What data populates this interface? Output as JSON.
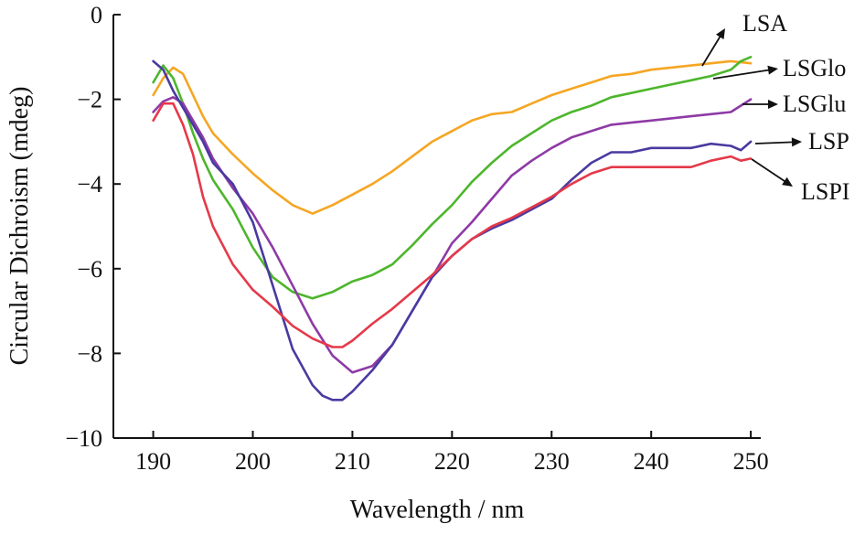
{
  "chart_data": {
    "type": "line",
    "title": "",
    "xlabel": "Wavelength / nm",
    "ylabel": "Circular Dichroism (mdeg)",
    "xlim": [
      186,
      251
    ],
    "ylim": [
      -10,
      0
    ],
    "xticks": [
      190,
      200,
      210,
      220,
      230,
      240,
      250
    ],
    "yticks": [
      0,
      -2,
      -4,
      -6,
      -8,
      -10
    ],
    "xtick_labels": [
      "190",
      "200",
      "210",
      "220",
      "230",
      "240",
      "250"
    ],
    "ytick_labels": [
      "0",
      "−2",
      "−4",
      "−6",
      "−8",
      "−10"
    ],
    "grid": false,
    "legend": "direct labels with arrows at right",
    "series": [
      {
        "name": "LSA",
        "color": "#f5a623",
        "x": [
          190,
          191,
          192,
          193,
          194,
          195,
          196,
          198,
          200,
          202,
          204,
          206,
          208,
          210,
          212,
          214,
          216,
          218,
          220,
          222,
          224,
          226,
          228,
          230,
          232,
          234,
          236,
          238,
          240,
          242,
          244,
          246,
          248,
          250
        ],
        "y": [
          -1.9,
          -1.5,
          -1.25,
          -1.4,
          -1.9,
          -2.4,
          -2.8,
          -3.3,
          -3.75,
          -4.15,
          -4.5,
          -4.7,
          -4.5,
          -4.25,
          -4.0,
          -3.7,
          -3.35,
          -3.0,
          -2.75,
          -2.5,
          -2.35,
          -2.3,
          -2.1,
          -1.9,
          -1.75,
          -1.6,
          -1.45,
          -1.4,
          -1.3,
          -1.25,
          -1.2,
          -1.15,
          -1.1,
          -1.15
        ]
      },
      {
        "name": "LSGlo",
        "color": "#4db62c",
        "x": [
          190,
          191,
          192,
          193,
          194,
          195,
          196,
          198,
          200,
          202,
          204,
          206,
          208,
          210,
          212,
          214,
          216,
          218,
          220,
          222,
          224,
          226,
          228,
          230,
          232,
          234,
          236,
          238,
          240,
          242,
          244,
          246,
          248,
          249,
          250
        ],
        "y": [
          -1.6,
          -1.2,
          -1.5,
          -2.1,
          -2.8,
          -3.4,
          -3.9,
          -4.6,
          -5.5,
          -6.2,
          -6.55,
          -6.7,
          -6.55,
          -6.3,
          -6.15,
          -5.9,
          -5.45,
          -4.95,
          -4.5,
          -3.95,
          -3.5,
          -3.1,
          -2.8,
          -2.5,
          -2.3,
          -2.15,
          -1.95,
          -1.85,
          -1.75,
          -1.65,
          -1.55,
          -1.45,
          -1.3,
          -1.1,
          -1.0
        ]
      },
      {
        "name": "LSGlu",
        "color": "#8e3aa6",
        "x": [
          190,
          191,
          192,
          193,
          194,
          195,
          196,
          198,
          200,
          202,
          204,
          206,
          208,
          210,
          212,
          214,
          216,
          218,
          220,
          222,
          224,
          226,
          228,
          230,
          232,
          234,
          236,
          238,
          240,
          242,
          244,
          246,
          248,
          250
        ],
        "y": [
          -2.3,
          -2.05,
          -1.95,
          -2.1,
          -2.5,
          -2.9,
          -3.4,
          -4.1,
          -4.7,
          -5.5,
          -6.4,
          -7.3,
          -8.05,
          -8.45,
          -8.3,
          -7.8,
          -7.0,
          -6.2,
          -5.4,
          -4.9,
          -4.35,
          -3.8,
          -3.45,
          -3.15,
          -2.9,
          -2.75,
          -2.6,
          -2.55,
          -2.5,
          -2.45,
          -2.4,
          -2.35,
          -2.3,
          -2.0
        ]
      },
      {
        "name": "LSP",
        "color": "#4a3aa0",
        "x": [
          190,
          191,
          192,
          193,
          194,
          195,
          196,
          198,
          200,
          202,
          204,
          206,
          207,
          208,
          209,
          210,
          212,
          214,
          216,
          218,
          220,
          222,
          224,
          226,
          228,
          230,
          232,
          234,
          236,
          238,
          240,
          242,
          244,
          246,
          248,
          249,
          250
        ],
        "y": [
          -1.1,
          -1.3,
          -1.8,
          -2.2,
          -2.6,
          -3.0,
          -3.5,
          -4.0,
          -4.9,
          -6.4,
          -7.9,
          -8.75,
          -9.0,
          -9.1,
          -9.1,
          -8.9,
          -8.4,
          -7.8,
          -7.0,
          -6.2,
          -5.7,
          -5.3,
          -5.05,
          -4.85,
          -4.6,
          -4.35,
          -3.9,
          -3.5,
          -3.25,
          -3.25,
          -3.15,
          -3.15,
          -3.15,
          -3.05,
          -3.1,
          -3.2,
          -3.0
        ]
      },
      {
        "name": "LSPI",
        "color": "#e53949",
        "x": [
          190,
          191,
          192,
          193,
          194,
          195,
          196,
          198,
          200,
          202,
          204,
          206,
          208,
          209,
          210,
          212,
          214,
          216,
          218,
          220,
          222,
          224,
          226,
          228,
          230,
          232,
          234,
          236,
          238,
          240,
          242,
          244,
          246,
          248,
          249,
          250
        ],
        "y": [
          -2.5,
          -2.1,
          -2.1,
          -2.6,
          -3.3,
          -4.3,
          -5.0,
          -5.9,
          -6.5,
          -6.9,
          -7.35,
          -7.65,
          -7.85,
          -7.85,
          -7.7,
          -7.3,
          -6.95,
          -6.55,
          -6.15,
          -5.7,
          -5.3,
          -5.0,
          -4.8,
          -4.55,
          -4.3,
          -4.0,
          -3.75,
          -3.6,
          -3.6,
          -3.6,
          -3.6,
          -3.6,
          -3.45,
          -3.35,
          -3.45,
          -3.4
        ]
      }
    ]
  }
}
